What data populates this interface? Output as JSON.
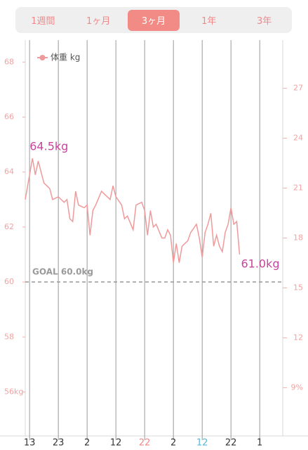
{
  "tabs": [
    {
      "label": "1週間"
    },
    {
      "label": "1ヶ月"
    },
    {
      "label": "3ヶ月",
      "selected": true
    },
    {
      "label": "1年"
    },
    {
      "label": "3年"
    }
  ],
  "chart_data": {
    "type": "line",
    "legend": "upper left",
    "ylim": [
      54.4,
      68.8
    ],
    "yticks": [
      {
        "value": 56,
        "label": "56kg"
      },
      58,
      60,
      62,
      64,
      66,
      68
    ],
    "y2lim": [
      6.1,
      29.9
    ],
    "y2ticks": [
      {
        "value": 9,
        "label": "9%"
      },
      12,
      15,
      18,
      21,
      24,
      27
    ],
    "xlim": [
      -1.5,
      88
    ],
    "xticks": [
      {
        "value": 0,
        "label": "13",
        "color": "#333333"
      },
      {
        "value": 10,
        "label": "23",
        "color": "#333333"
      },
      {
        "value": 20,
        "label": "2",
        "color": "#333333"
      },
      {
        "value": 30,
        "label": "12",
        "color": "#333333"
      },
      {
        "value": 40,
        "label": "22",
        "color": "#f08a8a"
      },
      {
        "value": 50,
        "label": "2",
        "color": "#333333"
      },
      {
        "value": 60,
        "label": "12",
        "color": "#5ab8d6"
      },
      {
        "value": 70,
        "label": "22",
        "color": "#333333"
      },
      {
        "value": 80,
        "label": "1",
        "color": "#333333"
      }
    ],
    "goal": {
      "value": 60,
      "label": "GOAL 60.0kg"
    },
    "label_color": "#c8449e",
    "series": [
      {
        "name": "体重 kg",
        "color": "#ef9a9a",
        "x": [
          -1.5,
          -0.5,
          1,
          2,
          3,
          4,
          5,
          7,
          8,
          10,
          12,
          13,
          14,
          15,
          16,
          17,
          19,
          20,
          21,
          22,
          23,
          25,
          27,
          28,
          29,
          30,
          32,
          33,
          34,
          36,
          37,
          39,
          40,
          41,
          42,
          43,
          44,
          46,
          47,
          48,
          49,
          50,
          51,
          52,
          53,
          55,
          56,
          58,
          59,
          60,
          61,
          62,
          63,
          64,
          65,
          66,
          67,
          68,
          69,
          70,
          71,
          72,
          73
        ],
        "values": [
          63.0,
          63.6,
          64.5,
          63.9,
          64.4,
          64.0,
          63.6,
          63.4,
          63.0,
          63.1,
          62.9,
          63.0,
          62.3,
          62.2,
          63.3,
          62.8,
          62.7,
          62.8,
          61.7,
          62.6,
          62.8,
          63.3,
          63.1,
          63.0,
          63.5,
          63.1,
          62.8,
          62.3,
          62.4,
          61.9,
          62.8,
          62.9,
          62.6,
          61.7,
          62.6,
          62.0,
          62.1,
          61.6,
          61.6,
          61.9,
          61.7,
          60.7,
          61.4,
          60.7,
          61.3,
          61.5,
          61.8,
          62.1,
          61.6,
          60.9,
          61.8,
          62.1,
          62.5,
          61.3,
          61.7,
          61.3,
          61.1,
          61.8,
          62.1,
          62.7,
          62.1,
          62.2,
          61.0
        ],
        "value_labels": [
          null,
          null,
          "64.5kg",
          null,
          null,
          null,
          null,
          null,
          null,
          null,
          null,
          null,
          null,
          null,
          null,
          null,
          null,
          null,
          null,
          null,
          null,
          null,
          null,
          null,
          null,
          null,
          null,
          null,
          null,
          null,
          null,
          null,
          null,
          null,
          null,
          null,
          null,
          null,
          null,
          null,
          null,
          null,
          null,
          null,
          null,
          null,
          null,
          null,
          null,
          null,
          null,
          null,
          null,
          null,
          null,
          null,
          null,
          null,
          null,
          null,
          null,
          null,
          "61.0kg"
        ]
      }
    ]
  }
}
